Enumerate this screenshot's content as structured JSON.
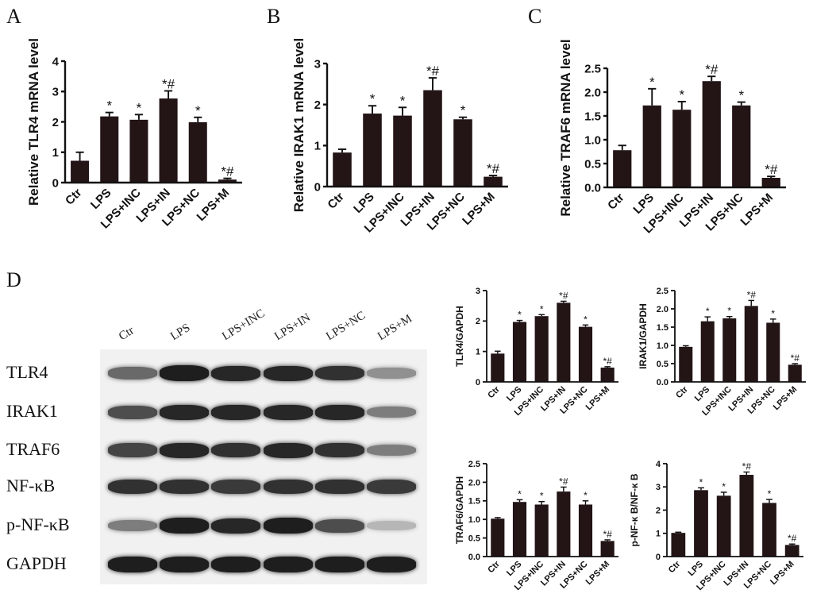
{
  "panels": {
    "A": "A",
    "B": "B",
    "C": "C",
    "D": "D"
  },
  "chart_data": [
    {
      "id": "A",
      "type": "bar",
      "categories": [
        "Ctr",
        "LPS",
        "LPS+INC",
        "LPS+IN",
        "LPS+NC",
        "LPS+M"
      ],
      "values": [
        0.72,
        2.18,
        2.07,
        2.77,
        1.99,
        0.1
      ],
      "errors": [
        0.28,
        0.13,
        0.17,
        0.25,
        0.16,
        0.04
      ],
      "annotations": [
        "",
        "*",
        "*",
        "*#",
        "*",
        "*#"
      ],
      "ylabel": "Relative TLR4 mRNA level",
      "ylim": [
        0,
        4
      ],
      "yticks": [
        0,
        1,
        2,
        3,
        4
      ],
      "ytick_labels": [
        "0",
        "1",
        "2",
        "3",
        "4"
      ]
    },
    {
      "id": "B",
      "type": "bar",
      "categories": [
        "Ctr",
        "LPS",
        "LPS+INC",
        "LPS+IN",
        "LPS+NC",
        "LPS+M"
      ],
      "values": [
        0.83,
        1.78,
        1.73,
        2.35,
        1.64,
        0.24
      ],
      "errors": [
        0.08,
        0.19,
        0.2,
        0.3,
        0.05,
        0.03
      ],
      "annotations": [
        "",
        "*",
        "*",
        "*#",
        "*",
        "*#"
      ],
      "ylabel": "Relative IRAK1 mRNA level",
      "ylim": [
        0,
        3
      ],
      "yticks": [
        0,
        1,
        2,
        3
      ],
      "ytick_labels": [
        "0",
        "1",
        "2",
        "3"
      ]
    },
    {
      "id": "C",
      "type": "bar",
      "categories": [
        "Ctr",
        "LPS",
        "LPS+INC",
        "LPS+IN",
        "LPS+NC",
        "LPS+M"
      ],
      "values": [
        0.78,
        1.72,
        1.63,
        2.23,
        1.72,
        0.2
      ],
      "errors": [
        0.1,
        0.35,
        0.17,
        0.1,
        0.07,
        0.03
      ],
      "annotations": [
        "",
        "*",
        "*",
        "*#",
        "*",
        "*#"
      ],
      "ylabel": "Relative TRAF6 mRNA level",
      "ylim": [
        0,
        2.5
      ],
      "yticks": [
        0,
        0.5,
        1,
        1.5,
        2,
        2.5
      ],
      "ytick_labels": [
        "0.0",
        "0.5",
        "1.0",
        "1.5",
        "2.0",
        "2.5"
      ]
    },
    {
      "id": "D1",
      "type": "bar",
      "categories": [
        "Ctr",
        "LPS",
        "LPS+INC",
        "LPS+IN",
        "LPS+NC",
        "LPS+M"
      ],
      "values": [
        0.93,
        1.97,
        2.16,
        2.6,
        1.81,
        0.47
      ],
      "errors": [
        0.08,
        0.05,
        0.05,
        0.05,
        0.06,
        0.03
      ],
      "annotations": [
        "",
        "*",
        "*",
        "*#",
        "*",
        "*#"
      ],
      "ylabel": "TLR4/GAPDH",
      "ylim": [
        0,
        3
      ],
      "yticks": [
        0,
        1,
        2,
        3
      ],
      "ytick_labels": [
        "0",
        "1",
        "2",
        "3"
      ]
    },
    {
      "id": "D2",
      "type": "bar",
      "categories": [
        "Ctr",
        "LPS",
        "LPS+INC",
        "LPS+IN",
        "LPS+NC",
        "LPS+M"
      ],
      "values": [
        0.96,
        1.66,
        1.74,
        2.08,
        1.62,
        0.47
      ],
      "errors": [
        0.03,
        0.12,
        0.05,
        0.15,
        0.1,
        0.03
      ],
      "annotations": [
        "",
        "*",
        "*",
        "*#",
        "*",
        "*#"
      ],
      "ylabel": "IRAK1/GAPDH",
      "ylim": [
        0,
        2.5
      ],
      "yticks": [
        0,
        0.5,
        1,
        1.5,
        2,
        2.5
      ],
      "ytick_labels": [
        "0.0",
        "0.5",
        "1.0",
        "1.5",
        "2.0",
        "2.5"
      ]
    },
    {
      "id": "D3",
      "type": "bar",
      "categories": [
        "Ctr",
        "LPS",
        "LPS+INC",
        "LPS+IN",
        "LPS+NC",
        "LPS+M"
      ],
      "values": [
        1.02,
        1.47,
        1.4,
        1.75,
        1.4,
        0.42
      ],
      "errors": [
        0.03,
        0.06,
        0.08,
        0.12,
        0.1,
        0.03
      ],
      "annotations": [
        "",
        "*",
        "*",
        "*#",
        "*",
        "*#"
      ],
      "ylabel": "TRAF6/GAPDH",
      "ylim": [
        0,
        2.5
      ],
      "yticks": [
        0,
        0.5,
        1,
        1.5,
        2,
        2.5
      ],
      "ytick_labels": [
        "0.0",
        "0.5",
        "1.0",
        "1.5",
        "2.0",
        "2.5"
      ]
    },
    {
      "id": "D4",
      "type": "bar",
      "categories": [
        "Ctr",
        "LPS",
        "LPS+INC",
        "LPS+IN",
        "LPS+NC",
        "LPS+M"
      ],
      "values": [
        1.02,
        2.86,
        2.62,
        3.52,
        2.31,
        0.5
      ],
      "errors": [
        0.03,
        0.1,
        0.15,
        0.12,
        0.15,
        0.04
      ],
      "annotations": [
        "",
        "*",
        "*",
        "*#",
        "*",
        "*#"
      ],
      "ylabel": "p-NF-κ B/NF-κ B",
      "ylim": [
        0,
        4
      ],
      "yticks": [
        0,
        1,
        2,
        3,
        4
      ],
      "ytick_labels": [
        "0",
        "1",
        "2",
        "3",
        "4"
      ]
    }
  ],
  "western_blot": {
    "lanes": [
      "Ctr",
      "LPS",
      "LPS+INC",
      "LPS+IN",
      "LPS+NC",
      "LPS+M"
    ],
    "rows": [
      {
        "label": "TLR4",
        "intensity": [
          0.55,
          0.95,
          0.9,
          0.9,
          0.85,
          0.35
        ]
      },
      {
        "label": "IRAK1",
        "intensity": [
          0.7,
          0.9,
          0.9,
          0.9,
          0.9,
          0.45
        ]
      },
      {
        "label": "TRAF6",
        "intensity": [
          0.75,
          0.9,
          0.85,
          0.9,
          0.85,
          0.45
        ]
      },
      {
        "label": "NF-κB",
        "intensity": [
          0.85,
          0.85,
          0.8,
          0.85,
          0.85,
          0.8
        ]
      },
      {
        "label": "p-NF-κB",
        "intensity": [
          0.45,
          0.95,
          0.9,
          0.95,
          0.7,
          0.15
        ]
      },
      {
        "label": "GAPDH",
        "intensity": [
          0.95,
          0.95,
          0.95,
          0.95,
          0.95,
          0.95
        ]
      }
    ]
  }
}
